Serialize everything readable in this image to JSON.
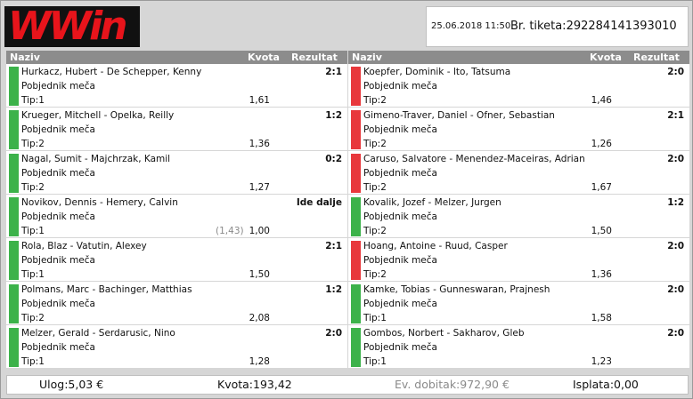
{
  "brand": {
    "logo_text": "WWin"
  },
  "ticket": {
    "datetime": "25.06.2018 11:50",
    "label": "Br. tiketa:",
    "number": "292284141393010"
  },
  "headers": {
    "naziv": "Naziv",
    "kvota": "Kvota",
    "rezultat": "Rezultat"
  },
  "left": [
    {
      "match": "Hurkacz, Hubert - De Schepper, Kenny",
      "market": "Pobjednik meča",
      "tip": "Tip:1",
      "odds": "1,61",
      "orig_odds": "",
      "result": "2:1",
      "status": "green"
    },
    {
      "match": "Krueger, Mitchell - Opelka, Reilly",
      "market": "Pobjednik meča",
      "tip": "Tip:2",
      "odds": "1,36",
      "orig_odds": "",
      "result": "1:2",
      "status": "green"
    },
    {
      "match": "Nagal, Sumit - Majchrzak, Kamil",
      "market": "Pobjednik meča",
      "tip": "Tip:2",
      "odds": "1,27",
      "orig_odds": "",
      "result": "0:2",
      "status": "green"
    },
    {
      "match": "Novikov, Dennis - Hemery, Calvin",
      "market": "Pobjednik meča",
      "tip": "Tip:1",
      "odds": "1,00",
      "orig_odds": "(1,43)",
      "result": "Ide dalje",
      "status": "green"
    },
    {
      "match": "Rola, Blaz - Vatutin, Alexey",
      "market": "Pobjednik meča",
      "tip": "Tip:1",
      "odds": "1,50",
      "orig_odds": "",
      "result": "2:1",
      "status": "green"
    },
    {
      "match": "Polmans, Marc - Bachinger, Matthias",
      "market": "Pobjednik meča",
      "tip": "Tip:2",
      "odds": "2,08",
      "orig_odds": "",
      "result": "1:2",
      "status": "green"
    },
    {
      "match": "Melzer, Gerald - Serdarusic, Nino",
      "market": "Pobjednik meča",
      "tip": "Tip:1",
      "odds": "1,28",
      "orig_odds": "",
      "result": "2:0",
      "status": "green"
    }
  ],
  "right": [
    {
      "match": "Koepfer, Dominik - Ito, Tatsuma",
      "market": "Pobjednik meča",
      "tip": "Tip:2",
      "odds": "1,46",
      "orig_odds": "",
      "result": "2:0",
      "status": "red"
    },
    {
      "match": "Gimeno-Traver, Daniel - Ofner, Sebastian",
      "market": "Pobjednik meča",
      "tip": "Tip:2",
      "odds": "1,26",
      "orig_odds": "",
      "result": "2:1",
      "status": "red"
    },
    {
      "match": "Caruso, Salvatore - Menendez-Maceiras, Adrian",
      "market": "Pobjednik meča",
      "tip": "Tip:2",
      "odds": "1,67",
      "orig_odds": "",
      "result": "2:0",
      "status": "red"
    },
    {
      "match": "Kovalik, Jozef - Melzer, Jurgen",
      "market": "Pobjednik meča",
      "tip": "Tip:2",
      "odds": "1,50",
      "orig_odds": "",
      "result": "1:2",
      "status": "green"
    },
    {
      "match": "Hoang, Antoine - Ruud, Casper",
      "market": "Pobjednik meča",
      "tip": "Tip:2",
      "odds": "1,36",
      "orig_odds": "",
      "result": "2:0",
      "status": "red"
    },
    {
      "match": "Kamke, Tobias - Gunneswaran, Prajnesh",
      "market": "Pobjednik meča",
      "tip": "Tip:1",
      "odds": "1,58",
      "orig_odds": "",
      "result": "2:0",
      "status": "green"
    },
    {
      "match": "Gombos, Norbert - Sakharov, Gleb",
      "market": "Pobjednik meča",
      "tip": "Tip:1",
      "odds": "1,23",
      "orig_odds": "",
      "result": "2:0",
      "status": "green"
    }
  ],
  "footer": {
    "stake": "Ulog:5,03 €",
    "total_odds": "Kvota:193,42",
    "potential_win": "Ev. dobitak:972,90 €",
    "payout": "Isplata:0,00"
  },
  "colors": {
    "win": "#3cb24a",
    "loss": "#e8383c",
    "header": "#8c8c8c",
    "brand": "#e8141b"
  }
}
